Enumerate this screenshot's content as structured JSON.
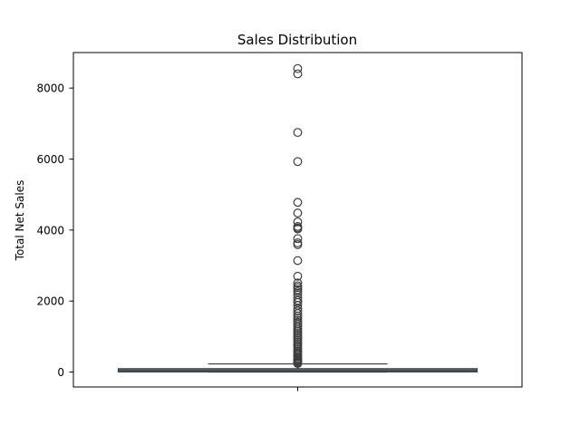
{
  "chart_data": {
    "type": "box",
    "title": "Sales Distribution",
    "xlabel": "",
    "ylabel": "Total Net Sales",
    "ylim": [
      -420,
      9000
    ],
    "yticks": [
      0,
      2000,
      4000,
      6000,
      8000
    ],
    "grid": false,
    "box": {
      "q1": 5,
      "median": 40,
      "q3": 95,
      "whisker_low": 0,
      "whisker_high": 230
    },
    "outliers": [
      8550,
      8400,
      6750,
      5930,
      4780,
      4480,
      4230,
      4100,
      4060,
      4030,
      3760,
      3640,
      3590,
      3140,
      2700,
      2510,
      2430,
      2380,
      2320,
      2260,
      2180,
      2090,
      2020,
      1960,
      1880,
      1790,
      1720,
      1650,
      1580,
      1520,
      1460,
      1400,
      1350,
      1290,
      1240,
      1190,
      1140,
      1090,
      1040,
      990,
      940,
      890,
      840,
      790,
      740,
      690,
      640,
      590,
      550,
      510,
      470,
      430,
      395,
      360,
      330,
      300,
      275,
      255,
      240
    ],
    "colors": {
      "box_fill": "#3f7fad",
      "line": "#3d3d3d",
      "outlier_edge": "#3d3d3d"
    }
  }
}
